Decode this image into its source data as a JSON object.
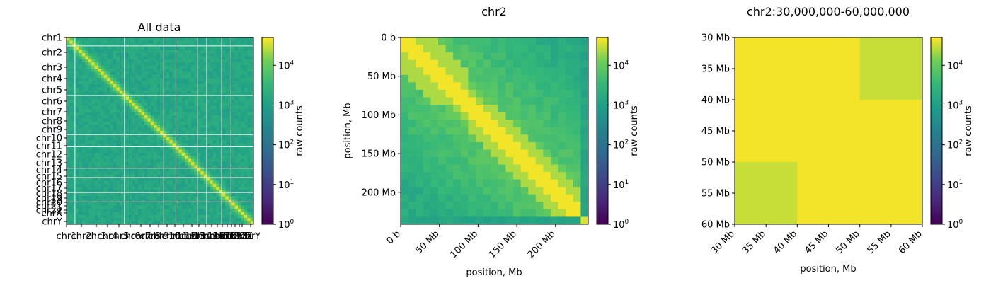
{
  "colorbar": {
    "label": "raw counts",
    "ticks": [
      "10",
      "10",
      "10",
      "10",
      "10"
    ],
    "exponents": [
      "0",
      "1",
      "2",
      "3",
      "4"
    ],
    "scale": "log",
    "range": [
      1,
      50000
    ]
  },
  "chart_data": [
    {
      "type": "heatmap",
      "title": "All data",
      "xlabel": "",
      "ylabel": "",
      "y_tick_labels": [
        "chr1",
        "chr2",
        "chr3",
        "chr4",
        "chr5",
        "chr6",
        "chr7",
        "chr8",
        "chr9",
        "chr10",
        "chr11",
        "chr12",
        "chr13",
        "chr14",
        "chr15",
        "chr16",
        "chr17",
        "chr18",
        "chr19",
        "chr20",
        "chr21",
        "chr22",
        "chrX",
        "chrY"
      ],
      "x_tick_labels": [
        "chr1",
        "chr2",
        "chr3",
        "chr4",
        "chr5",
        "chr6",
        "chr7",
        "chr8",
        "chr9",
        "chr10",
        "chr11",
        "chr12",
        "chr13",
        "chr14",
        "chr15",
        "chr16",
        "chr17",
        "chr18",
        "chr19",
        "chr20",
        "chr21",
        "chr22",
        "chrX",
        "chrY"
      ],
      "colormap": "viridis",
      "log_scale": true
    },
    {
      "type": "heatmap",
      "title": "chr2",
      "xlabel": "position, Mb",
      "ylabel": "position, Mb",
      "x_tick_labels": [
        "0 b",
        "50 Mb",
        "100 Mb",
        "150 Mb",
        "200 Mb"
      ],
      "y_tick_labels": [
        "0 b",
        "50 Mb",
        "100 Mb",
        "150 Mb",
        "200 Mb"
      ],
      "colormap": "viridis",
      "log_scale": true
    },
    {
      "type": "heatmap",
      "title": "chr2:30,000,000-60,000,000",
      "xlabel": "position, Mb",
      "ylabel": "",
      "x_tick_labels": [
        "30 Mb",
        "35 Mb",
        "40 Mb",
        "45 Mb",
        "50 Mb",
        "55 Mb",
        "60 Mb"
      ],
      "y_tick_labels": [
        "30 Mb",
        "35 Mb",
        "40 Mb",
        "45 Mb",
        "50 Mb",
        "55 Mb",
        "60 Mb"
      ],
      "colormap": "viridis",
      "log_scale": true,
      "bins": [
        "30-40 Mb",
        "40-50 Mb",
        "50-60 Mb"
      ],
      "values": [
        [
          45000,
          45000,
          30000
        ],
        [
          45000,
          45000,
          45000
        ],
        [
          30000,
          45000,
          45000
        ]
      ]
    }
  ]
}
